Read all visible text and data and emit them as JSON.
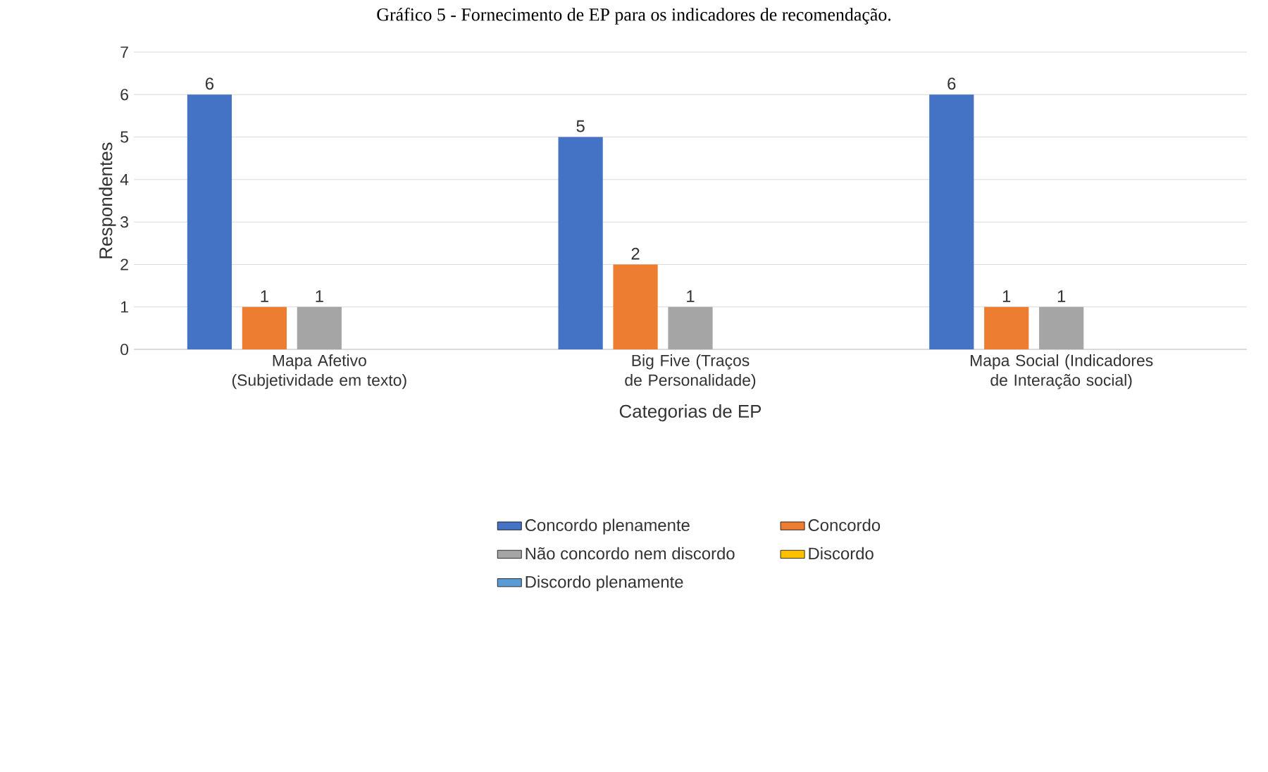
{
  "chart_data": {
    "type": "bar",
    "title": "Gráfico 5 - Fornecimento de EP para os indicadores de recomendação.",
    "xlabel": "Categorias de EP",
    "ylabel": "Respondentes",
    "categories": [
      "Mapa Afetivo (Subjetividade em texto)",
      "Big Five (Traços de Personalidade)",
      "Mapa Social (Indicadores de Interação social)"
    ],
    "series": [
      {
        "name": "Concordo plenamente",
        "color": "#4472c4",
        "values": [
          6,
          5,
          6
        ],
        "value_labels": [
          "6",
          "5",
          "6"
        ]
      },
      {
        "name": "Concordo",
        "color": "#ed7d31",
        "values": [
          1,
          2,
          1
        ],
        "value_labels": [
          "1",
          "2",
          "1"
        ]
      },
      {
        "name": "Não concordo nem discordo",
        "color": "#a5a5a5",
        "values": [
          1,
          1,
          1
        ],
        "value_labels": [
          "1",
          "1",
          "1"
        ]
      },
      {
        "name": "Discordo",
        "color": "#ffc000",
        "values": [
          0,
          0,
          0
        ],
        "value_labels": [
          null,
          null,
          null
        ]
      },
      {
        "name": "Discordo plenamente",
        "color": "#5b9bd5",
        "values": [
          0,
          0,
          0
        ],
        "value_labels": [
          null,
          null,
          null
        ]
      }
    ],
    "ylim": [
      0,
      7
    ],
    "yticks": [
      0,
      1,
      2,
      3,
      4,
      5,
      6,
      7
    ],
    "grid": "y",
    "legend": "bottom"
  }
}
